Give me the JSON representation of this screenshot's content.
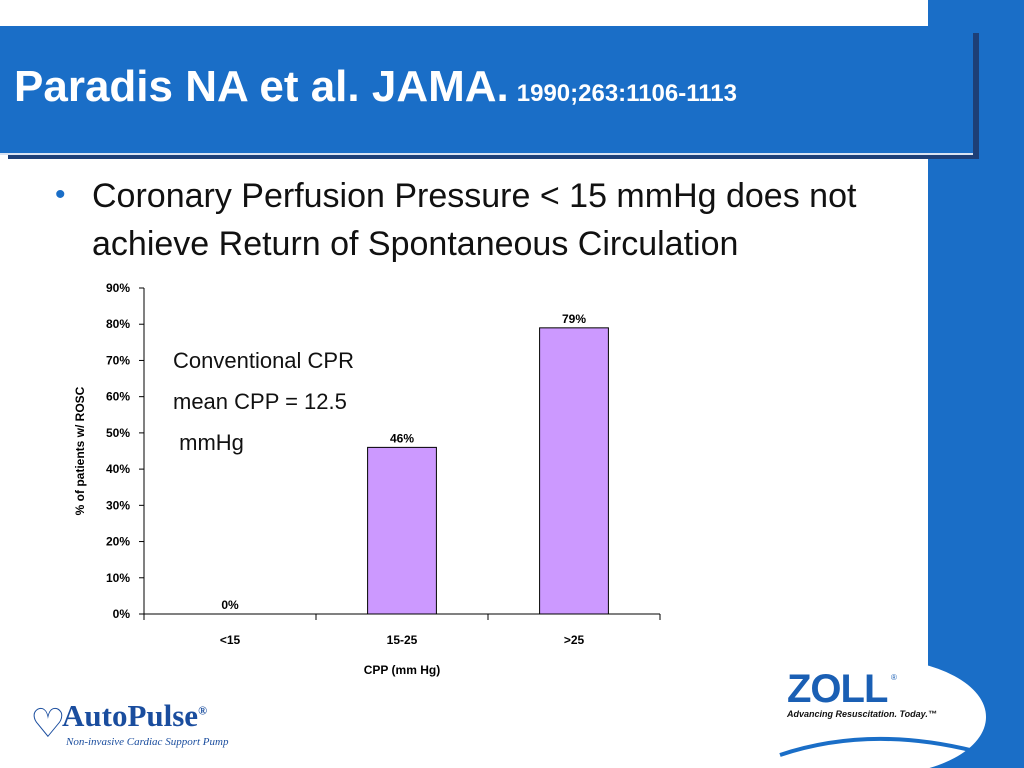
{
  "slide": {
    "title": "Paradis NA et al. JAMA.",
    "citation": "1990;263:1106-1113",
    "bullet": "Coronary Perfusion Pressure < 15 mmHg does not achieve Return of Spontaneous Circulation",
    "note": "Conventional CPR\nmean CPP = 12.5\n mmHg",
    "colors": {
      "title_bar": "#1a6ec7",
      "bar_fill": "#cc99ff"
    }
  },
  "logos": {
    "autopulse_name": "AutoPulse",
    "autopulse_tagline": "Non-invasive Cardiac Support Pump",
    "zoll_name": "ZOLL",
    "zoll_tagline": "Advancing Resuscitation. Today.™"
  },
  "chart_data": {
    "type": "bar",
    "categories": [
      "<15",
      "15-25",
      ">25"
    ],
    "values": [
      0,
      46,
      79
    ],
    "data_labels": [
      "0%",
      "46%",
      "79%"
    ],
    "xlabel": "CPP (mm Hg)",
    "ylabel": "% of patients w/ ROSC",
    "ylim": [
      0,
      90
    ],
    "yticks": [
      0,
      10,
      20,
      30,
      40,
      50,
      60,
      70,
      80,
      90
    ],
    "ytick_labels": [
      "0%",
      "10%",
      "20%",
      "30%",
      "40%",
      "50%",
      "60%",
      "70%",
      "80%",
      "90%"
    ],
    "grid": false,
    "legend": "none",
    "bar_color": "#cc99ff"
  }
}
